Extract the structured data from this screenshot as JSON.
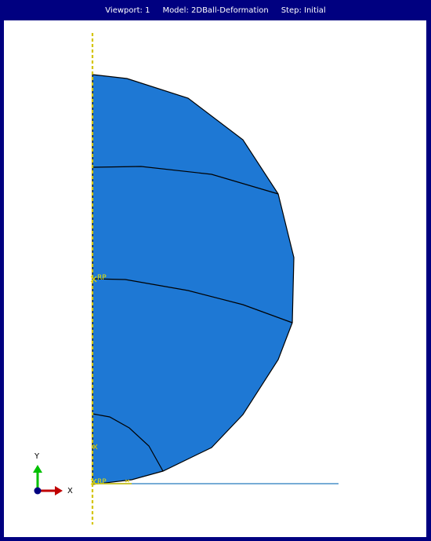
{
  "viewport_bar": {
    "viewport": "Viewport: 1",
    "model": "Model: 2DBall-Deformation",
    "step": "Step: Initial"
  },
  "labels": {
    "rp_center": "RP",
    "rp_bottom": "RP",
    "triad_y": "Y",
    "triad_x": "X"
  },
  "colors": {
    "frame": "#000080",
    "canvas": "#ffffff",
    "part_fill": "#1e78d4",
    "edge": "#000000",
    "symmetry_axis": "#d4c400",
    "rigid_surface": "#4a90c8",
    "rp_marker": "#e8e000",
    "triad_y": "#00c000",
    "triad_x": "#c00000",
    "triad_origin": "#000080"
  },
  "icons": {
    "triad": "xy-axis-triad-icon",
    "reference_point": "rp-cross-icon"
  }
}
